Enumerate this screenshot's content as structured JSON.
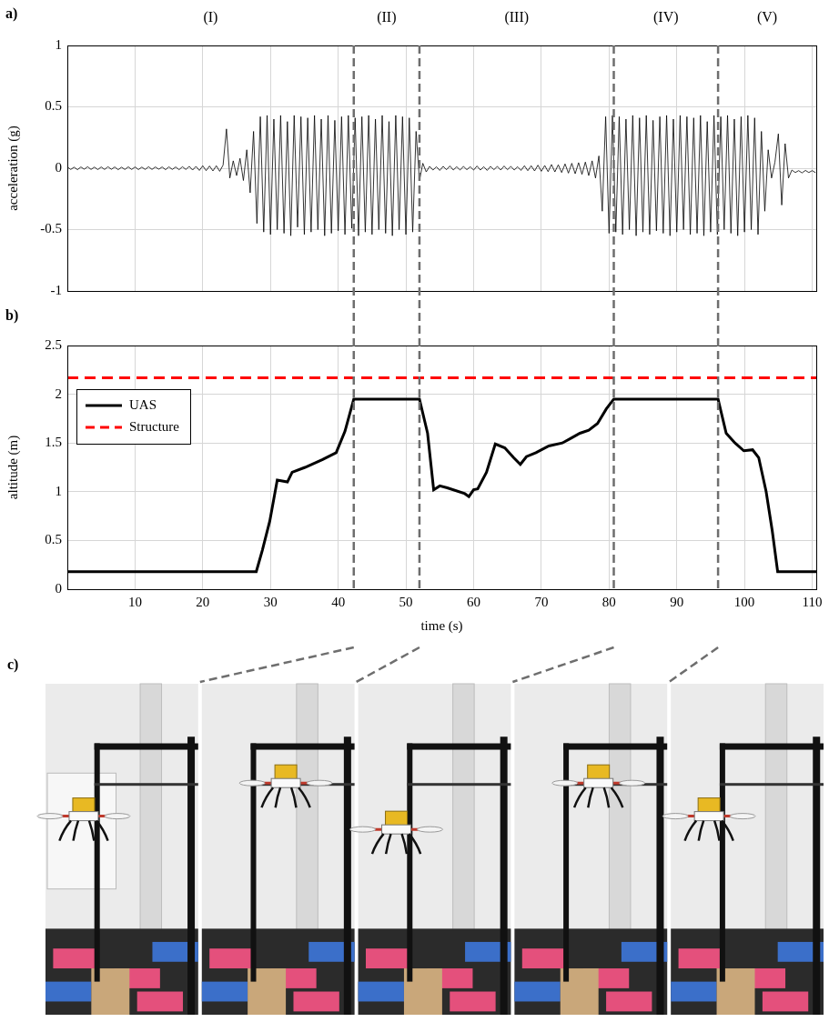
{
  "panels": [
    "a)",
    "b)",
    "c)"
  ],
  "phases": {
    "labels": [
      "(I)",
      "(II)",
      "(III)",
      "(IV)",
      "(V)"
    ],
    "boundaries": [
      42.3,
      52,
      80.7,
      96.1
    ]
  },
  "chart_data": [
    {
      "type": "line",
      "y_label": "acceleration (g)",
      "color": "#000000",
      "x": [
        0,
        0.5,
        1,
        1.5,
        2,
        2.5,
        3,
        3.5,
        4,
        4.5,
        5,
        5.5,
        6,
        6.5,
        7,
        7.5,
        8,
        8.5,
        9,
        9.5,
        10,
        10.5,
        11,
        11.5,
        12,
        12.5,
        13,
        13.5,
        14,
        14.5,
        15,
        15.5,
        16,
        16.5,
        17,
        17.5,
        18,
        18.5,
        19,
        19.5,
        20,
        20.5,
        21,
        21.5,
        22,
        22.5,
        23,
        23.5,
        24,
        24.5,
        25,
        25.5,
        26,
        26.5,
        27,
        27.5,
        28,
        28.5,
        29,
        29.5,
        30,
        30.5,
        31,
        31.5,
        32,
        32.5,
        33,
        33.5,
        34,
        34.5,
        35,
        35.5,
        36,
        36.5,
        37,
        37.5,
        38,
        38.5,
        39,
        39.5,
        40,
        40.5,
        41,
        41.5,
        42,
        42.5,
        43,
        43.5,
        44,
        44.5,
        45,
        45.5,
        46,
        46.5,
        47,
        47.5,
        48,
        48.5,
        49,
        49.5,
        50,
        50.5,
        51,
        51.5,
        52,
        52.5,
        53,
        53.5,
        54,
        54.5,
        55,
        55.5,
        56,
        56.5,
        57,
        57.5,
        58,
        58.5,
        59,
        59.5,
        60,
        60.5,
        61,
        61.5,
        62,
        62.5,
        63,
        63.5,
        64,
        64.5,
        65,
        65.5,
        66,
        66.5,
        67,
        67.5,
        68,
        68.5,
        69,
        69.5,
        70,
        70.5,
        71,
        71.5,
        72,
        72.5,
        73,
        73.5,
        74,
        74.5,
        75,
        75.5,
        76,
        76.5,
        77,
        77.5,
        78,
        78.5,
        79,
        79.5,
        80,
        80.5,
        81,
        81.5,
        82,
        82.5,
        83,
        83.5,
        84,
        84.5,
        85,
        85.5,
        86,
        86.5,
        87,
        87.5,
        88,
        88.5,
        89,
        89.5,
        90,
        90.5,
        91,
        91.5,
        92,
        92.5,
        93,
        93.5,
        94,
        94.5,
        95,
        95.5,
        96,
        96.5,
        97,
        97.5,
        98,
        98.5,
        99,
        99.5,
        100,
        100.5,
        101,
        101.5,
        102,
        102.5,
        103,
        103.5,
        104,
        104.5,
        105,
        105.5,
        106,
        106.5,
        107,
        107.5,
        108,
        108.5,
        109,
        109.5,
        110,
        110.5
      ],
      "values": [
        0.01,
        -0.01,
        0.008,
        -0.012,
        0.01,
        -0.008,
        0.012,
        -0.01,
        0.009,
        -0.011,
        0.01,
        -0.01,
        0.012,
        -0.009,
        0.01,
        -0.012,
        0.008,
        -0.01,
        0.011,
        -0.01,
        0.01,
        -0.011,
        0.009,
        -0.01,
        0.012,
        -0.01,
        0.01,
        -0.008,
        0.01,
        -0.012,
        0.011,
        -0.01,
        0.01,
        -0.012,
        0.012,
        -0.01,
        0.015,
        -0.015,
        0.015,
        -0.018,
        0.02,
        -0.02,
        0.018,
        -0.022,
        0.02,
        -0.025,
        0.025,
        0.32,
        -0.08,
        0.06,
        -0.06,
        0.08,
        -0.1,
        0.15,
        -0.2,
        0.3,
        -0.45,
        0.42,
        -0.52,
        0.43,
        -0.54,
        0.4,
        -0.5,
        0.43,
        -0.53,
        0.38,
        -0.55,
        0.43,
        -0.48,
        0.42,
        -0.54,
        0.41,
        -0.52,
        0.43,
        -0.5,
        0.4,
        -0.55,
        0.43,
        -0.53,
        0.39,
        -0.51,
        0.42,
        -0.54,
        0.43,
        -0.49,
        0.41,
        -0.55,
        0.42,
        -0.52,
        0.43,
        -0.54,
        0.4,
        -0.5,
        0.43,
        -0.53,
        0.38,
        -0.55,
        0.43,
        -0.5,
        0.42,
        -0.54,
        0.41,
        -0.52,
        0.3,
        -0.1,
        0.04,
        -0.03,
        0.015,
        -0.015,
        0.012,
        -0.018,
        0.015,
        -0.012,
        0.018,
        -0.015,
        0.012,
        -0.015,
        0.015,
        -0.012,
        0.012,
        -0.015,
        0.018,
        -0.015,
        0.012,
        -0.018,
        0.015,
        -0.012,
        0.015,
        -0.015,
        0.018,
        -0.012,
        0.015,
        -0.015,
        0.012,
        -0.018,
        0.02,
        -0.02,
        0.02,
        -0.022,
        0.025,
        -0.025,
        0.022,
        -0.028,
        0.03,
        -0.03,
        0.028,
        -0.035,
        0.035,
        -0.04,
        0.04,
        -0.045,
        0.045,
        -0.05,
        0.05,
        -0.06,
        0.06,
        -0.08,
        0.1,
        -0.35,
        0.42,
        -0.53,
        0.43,
        -0.52,
        0.42,
        -0.54,
        0.4,
        -0.5,
        0.43,
        -0.55,
        0.41,
        -0.52,
        0.43,
        -0.54,
        0.39,
        -0.51,
        0.42,
        -0.53,
        0.43,
        -0.55,
        0.4,
        -0.52,
        0.43,
        -0.5,
        0.42,
        -0.54,
        0.41,
        -0.53,
        0.43,
        -0.55,
        0.38,
        -0.52,
        0.43,
        -0.54,
        0.42,
        -0.5,
        0.43,
        -0.53,
        0.4,
        -0.55,
        0.42,
        -0.52,
        0.43,
        -0.5,
        0.41,
        -0.54,
        0.3,
        -0.35,
        0.15,
        -0.08,
        0.05,
        0.28,
        -0.3,
        0.2,
        -0.08,
        -0.015,
        -0.035,
        -0.02,
        -0.038,
        -0.018,
        -0.035,
        -0.02,
        -0.036
      ],
      "xlim": [
        0,
        110.6
      ],
      "xticks": [
        10,
        20,
        30,
        40,
        50,
        60,
        70,
        80,
        90,
        100,
        110
      ],
      "ylim": [
        -1,
        1
      ],
      "yticks": [
        -1,
        -0.5,
        0,
        0.5,
        1
      ],
      "grid": true,
      "tick_labels": "y"
    },
    {
      "type": "line",
      "x_label": "time (s)",
      "y_label": "altitude (m)",
      "series": [
        {
          "name": "UAS",
          "color": "#000000",
          "line_style": "solid",
          "x": [
            0,
            27.9,
            28.8,
            29.9,
            31,
            32.5,
            33.2,
            35.1,
            37.7,
            39.7,
            41,
            42.3,
            52,
            53.2,
            54.1,
            55,
            56.1,
            58.7,
            59.3,
            60,
            60.6,
            61.9,
            63.2,
            64.6,
            65.9,
            66.9,
            67.8,
            69.2,
            71.1,
            73.1,
            74.4,
            75.7,
            77,
            78.3,
            79.6,
            80.7,
            96.1,
            97.3,
            98.6,
            99.9,
            101.2,
            102.1,
            103.2,
            104.1,
            104.9,
            110.6
          ],
          "values": [
            0.18,
            0.18,
            0.4,
            0.7,
            1.12,
            1.1,
            1.2,
            1.25,
            1.33,
            1.4,
            1.62,
            1.95,
            1.95,
            1.6,
            1.02,
            1.06,
            1.04,
            0.98,
            0.95,
            1.02,
            1.03,
            1.2,
            1.49,
            1.45,
            1.35,
            1.28,
            1.36,
            1.4,
            1.47,
            1.5,
            1.55,
            1.6,
            1.63,
            1.7,
            1.85,
            1.95,
            1.95,
            1.6,
            1.5,
            1.42,
            1.43,
            1.35,
            1,
            0.6,
            0.18,
            0.18
          ]
        },
        {
          "name": "Structure",
          "color": "#ff0000",
          "line_style": "dashed",
          "x": [
            0,
            110.6
          ],
          "values": [
            2.17,
            2.17
          ]
        }
      ],
      "xlim": [
        0,
        110.6
      ],
      "xticks": [
        10,
        20,
        30,
        40,
        50,
        60,
        70,
        80,
        90,
        100,
        110
      ],
      "ylim": [
        0,
        2.5
      ],
      "yticks": [
        0,
        0.5,
        1,
        1.5,
        2,
        2.5
      ],
      "grid": true,
      "legend": "upper left"
    }
  ]
}
